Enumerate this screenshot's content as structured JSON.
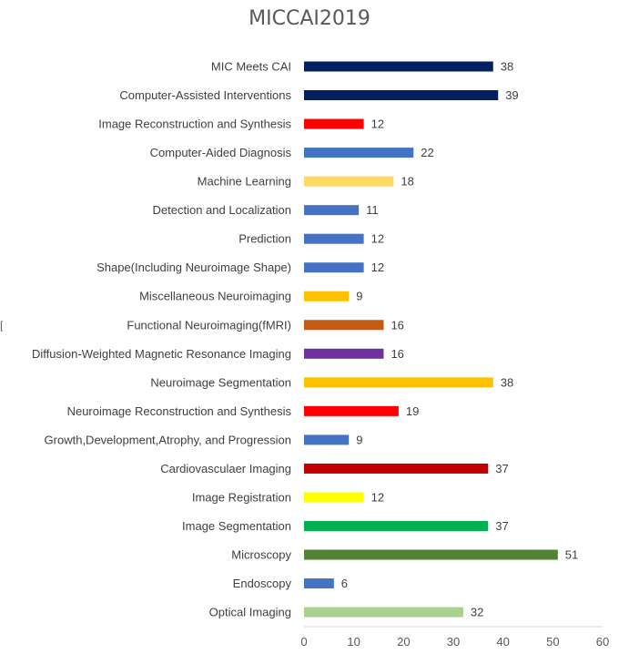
{
  "chart_data": {
    "type": "bar",
    "orientation": "horizontal",
    "title": "MICCAI2019",
    "xlabel": "",
    "ylabel": "",
    "xlim": [
      0,
      60
    ],
    "xticks": [
      0,
      10,
      20,
      30,
      40,
      50,
      60
    ],
    "grid": false,
    "legend": "none",
    "categories": [
      "MIC Meets CAI",
      "Computer-Assisted Interventions",
      "Image Reconstruction and Synthesis",
      "Computer-Aided Diagnosis",
      "Machine Learning",
      "Detection and Localization",
      "Prediction",
      "Shape(Including Neuroimage Shape)",
      "Miscellaneous Neuroimaging",
      "Functional Neuroimaging(fMRI)",
      "Diffusion-Weighted Magnetic Resonance Imaging",
      "Neuroimage Segmentation",
      "Neuroimage Reconstruction and Synthesis",
      "Growth,Development,Atrophy, and Progression",
      "Cardiovasculaer Imaging",
      "Image Registration",
      "Image Segmentation",
      "Microscopy",
      "Endoscopy",
      "Optical Imaging"
    ],
    "values": [
      38,
      39,
      12,
      22,
      18,
      11,
      12,
      12,
      9,
      16,
      16,
      38,
      19,
      9,
      37,
      12,
      37,
      51,
      6,
      32
    ],
    "colors": [
      "#002060",
      "#002060",
      "#FF0000",
      "#4472C4",
      "#FFD966",
      "#4472C4",
      "#4472C4",
      "#4472C4",
      "#FFC000",
      "#C55A11",
      "#7030A0",
      "#FFC000",
      "#FF0000",
      "#4472C4",
      "#C00000",
      "#FFFF00",
      "#00B050",
      "#548235",
      "#4472C4",
      "#A9D18E"
    ]
  },
  "edge_mark": "["
}
